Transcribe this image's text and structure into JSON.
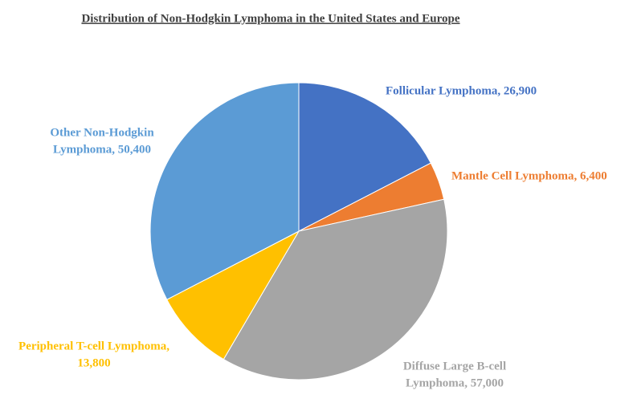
{
  "chart_data": {
    "type": "pie",
    "title": "Distribution of Non-Hodgkin Lymphoma in the United States and Europe",
    "values": [
      26900,
      6400,
      57000,
      13800,
      50400
    ],
    "value_labels": [
      [
        "Follicular Lymphoma, 26,900"
      ],
      [
        "Mantle Cell Lymphoma, 6,400"
      ],
      [
        "Diffuse Large B-cell",
        "Lymphoma, 57,000"
      ],
      [
        "Peripheral T-cell Lymphoma,",
        "13,800"
      ],
      [
        "Other Non-Hodgkin",
        "Lymphoma, 50,400"
      ]
    ],
    "colors": [
      "#4472c4",
      "#ed7d31",
      "#a5a5a5",
      "#ffc000",
      "#5b9bd5"
    ]
  }
}
